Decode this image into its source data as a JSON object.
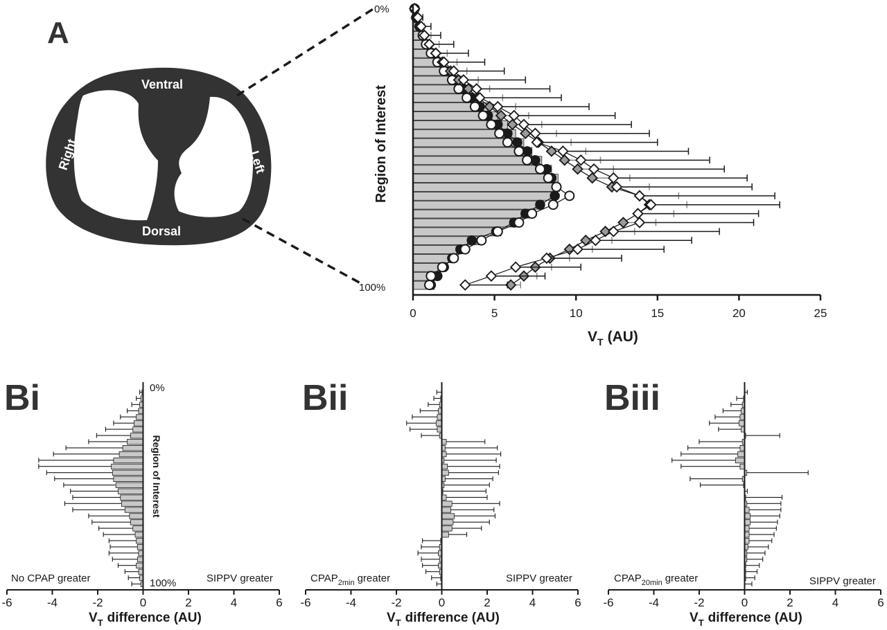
{
  "figure": {
    "panel_labels": [
      "A",
      "Bi",
      "Bii",
      "Biii"
    ],
    "lung_diagram": {
      "labels": {
        "ventral": "Ventral",
        "dorsal": "Dorsal",
        "right": "Right",
        "left": "Left"
      }
    },
    "roi_top_label": "0%",
    "roi_bottom_label": "100%"
  },
  "colors": {
    "bar_fill": "#c8c8c8",
    "ink": "#1a1a1a",
    "lung_fill": "#333333"
  },
  "chart_data": [
    {
      "id": "A",
      "type": "bar",
      "orientation": "horizontal",
      "ylabel": "Region of Interest",
      "xlabel": "V",
      "xlabel_sub": "T",
      "xlabel_unit": "(AU)",
      "xlim": [
        0,
        25
      ],
      "xticks": [
        0,
        5,
        10,
        15,
        20,
        25
      ],
      "ytop_label": "0%",
      "ybottom_label": "100%",
      "regions": 32,
      "bar_values": [
        0.1,
        0.2,
        0.5,
        0.8,
        1.1,
        1.5,
        2.0,
        2.5,
        3.1,
        3.6,
        4.2,
        4.7,
        5.2,
        5.8,
        6.3,
        6.8,
        7.3,
        7.9,
        8.5,
        8.9,
        9.0,
        8.8,
        8.0,
        7.2,
        6.4,
        5.4,
        4.2,
        3.3,
        2.6,
        2.0,
        1.6,
        1.3
      ],
      "series": [
        {
          "name": "",
          "marker": "filled-circle",
          "values": [
            0.1,
            0.2,
            0.4,
            0.6,
            0.9,
            1.2,
            1.6,
            2.0,
            2.6,
            3.1,
            3.6,
            4.1,
            4.6,
            5.2,
            5.8,
            6.4,
            7.0,
            7.5,
            8.2,
            8.5,
            8.8,
            8.7,
            7.8,
            6.9,
            6.2,
            5.1,
            3.6,
            2.9,
            2.4,
            1.9,
            1.5,
            1.1
          ],
          "errors": [
            0,
            0,
            0,
            0,
            0,
            0,
            0,
            0,
            0,
            0,
            0,
            0,
            0,
            0,
            0,
            0,
            0,
            0,
            0,
            0,
            0,
            0,
            0,
            0,
            0,
            0,
            0,
            0,
            0,
            0,
            0,
            0
          ]
        },
        {
          "name": "",
          "marker": "open-circle",
          "values": [
            0.1,
            0.2,
            0.4,
            0.6,
            0.8,
            1.1,
            1.5,
            1.9,
            2.4,
            2.8,
            3.3,
            3.8,
            4.3,
            4.8,
            5.3,
            5.8,
            6.5,
            7.0,
            7.8,
            8.3,
            8.8,
            9.6,
            8.6,
            7.3,
            6.5,
            5.2,
            4.2,
            3.2,
            2.5,
            1.8,
            1.1,
            1.0
          ],
          "errors": [
            0,
            0,
            0,
            0,
            0,
            0,
            0,
            0,
            0,
            0,
            0,
            0,
            0,
            0,
            0,
            0,
            0,
            0,
            0,
            0,
            0,
            0,
            0,
            0,
            0,
            0,
            0,
            0,
            0,
            0,
            0,
            0
          ]
        },
        {
          "name": "",
          "marker": "gray-diamond",
          "values": [
            0.1,
            0.2,
            0.4,
            0.7,
            1.0,
            1.4,
            1.8,
            2.3,
            2.8,
            3.4,
            4.0,
            4.7,
            5.4,
            6.1,
            6.9,
            7.7,
            8.5,
            9.3,
            10.1,
            11.0,
            12.2,
            13.9,
            14.5,
            13.8,
            12.9,
            11.8,
            10.6,
            9.6,
            8.4,
            7.5,
            6.8,
            6.0
          ],
          "errors": [
            0.1,
            0.2,
            0.3,
            0.4,
            0.6,
            0.7,
            0.9,
            1.0,
            1.2,
            1.3,
            1.5,
            1.6,
            1.7,
            1.8,
            1.9,
            2.0,
            2.1,
            2.2,
            2.2,
            2.3,
            2.3,
            2.4,
            2.3,
            2.2,
            2.0,
            1.8,
            1.6,
            1.4,
            1.2,
            1.0,
            0.8,
            0.6
          ]
        },
        {
          "name": "",
          "marker": "open-diamond",
          "values": [
            0.1,
            0.3,
            0.5,
            0.7,
            1.0,
            1.4,
            1.9,
            2.5,
            3.1,
            3.9,
            4.1,
            5.2,
            6.2,
            6.8,
            7.5,
            7.6,
            9.2,
            10.3,
            11.1,
            12.3,
            12.5,
            13.9,
            14.6,
            13.8,
            13.9,
            12.3,
            11.2,
            10.1,
            8.2,
            6.3,
            4.8,
            3.2
          ],
          "errors": [
            0.1,
            0.3,
            0.6,
            1.0,
            1.5,
            2.0,
            2.5,
            3.1,
            3.8,
            4.5,
            5.0,
            5.6,
            6.2,
            6.6,
            7.0,
            7.4,
            7.7,
            7.9,
            8.0,
            8.2,
            8.3,
            8.3,
            7.9,
            7.4,
            7.0,
            6.5,
            5.9,
            5.3,
            4.6,
            4.0,
            3.3,
            2.6
          ]
        }
      ]
    },
    {
      "id": "Bi",
      "type": "bar",
      "orientation": "horizontal",
      "xlabel": "V",
      "xlabel_sub": "T",
      "xlabel_unit": "difference (AU)",
      "xlim": [
        -6,
        6
      ],
      "xticks": [
        -6,
        -4,
        -2,
        0,
        2,
        4,
        6
      ],
      "ylabel": "Region of Interest",
      "ytop_label": "0%",
      "ybottom_label": "100%",
      "left_note": "No CPAP greater",
      "right_note": "SIPPV greater",
      "values": [
        -0.05,
        -0.1,
        -0.15,
        -0.2,
        -0.3,
        -0.4,
        -0.45,
        -0.55,
        -0.7,
        -0.9,
        -1.05,
        -1.3,
        -1.4,
        -1.35,
        -1.3,
        -1.2,
        -1.1,
        -1.0,
        -0.95,
        -0.8,
        -0.6,
        -0.55,
        -0.45,
        -0.35,
        -0.3,
        -0.25,
        -0.2,
        -0.25,
        -0.3,
        -0.2,
        -0.15,
        -0.1
      ],
      "errors": [
        0.1,
        0.2,
        0.35,
        0.5,
        0.7,
        0.9,
        1.2,
        1.5,
        1.7,
        2.5,
        2.9,
        3.3,
        3.2,
        2.9,
        2.6,
        2.3,
        2.1,
        2.1,
        2.5,
        2.3,
        1.8,
        1.7,
        1.5,
        1.4,
        1.2,
        1.2,
        1.3,
        1.1,
        0.8,
        0.6,
        0.5,
        0.4
      ]
    },
    {
      "id": "Bii",
      "type": "bar",
      "orientation": "horizontal",
      "xlabel": "V",
      "xlabel_sub": "T",
      "xlabel_unit": "difference (AU)",
      "xlim": [
        -6,
        6
      ],
      "xticks": [
        -6,
        -4,
        -2,
        0,
        2,
        4,
        6
      ],
      "left_note": "CPAP",
      "left_note_sub": "2min",
      "left_note_tail": "greater",
      "right_note": "SIPPV greater",
      "values": [
        -0.02,
        -0.05,
        -0.1,
        -0.15,
        -0.2,
        -0.25,
        -0.2,
        -0.1,
        0.2,
        0.15,
        0.2,
        0.1,
        0.25,
        0.3,
        0.15,
        0.1,
        0.05,
        0.2,
        0.45,
        0.4,
        0.55,
        0.5,
        0.45,
        0.3,
        -0.05,
        -0.1,
        -0.15,
        -0.1,
        -0.15,
        -0.1,
        -0.05,
        -0.02
      ],
      "errors": [
        0.2,
        0.3,
        0.5,
        0.8,
        1.1,
        1.3,
        1.2,
        0.8,
        1.7,
        2.3,
        2.4,
        2.3,
        2.3,
        2.2,
        2.1,
        2.0,
        1.9,
        1.8,
        2.1,
        1.9,
        1.8,
        1.6,
        1.3,
        0.8,
        0.8,
        0.8,
        0.9,
        0.8,
        0.7,
        0.6,
        0.4,
        0.2
      ]
    },
    {
      "id": "Biii",
      "type": "bar",
      "orientation": "horizontal",
      "xlabel": "V",
      "xlabel_sub": "T",
      "xlabel_unit": "difference (AU)",
      "xlim": [
        -6,
        6
      ],
      "xticks": [
        -6,
        -4,
        -2,
        0,
        2,
        4,
        6
      ],
      "left_note": "CPAP",
      "left_note_sub": "20min",
      "left_note_tail": "greater",
      "right_note": "SIPPV greater",
      "values": [
        0.02,
        -0.05,
        -0.1,
        -0.15,
        -0.2,
        -0.25,
        -0.15,
        0.05,
        -0.1,
        -0.2,
        -0.3,
        -0.4,
        -0.2,
        0.1,
        -0.1,
        -0.05,
        0.02,
        0.05,
        0.1,
        0.2,
        0.25,
        0.25,
        0.2,
        0.2,
        0.2,
        0.15,
        0.1,
        0.1,
        0.05,
        0.05,
        0.05,
        0.02
      ],
      "errors": [
        0.1,
        0.3,
        0.5,
        0.8,
        1.1,
        1.3,
        1.0,
        1.5,
        1.9,
        2.3,
        2.5,
        2.8,
        2.6,
        2.7,
        2.3,
        1.9,
        0.1,
        1.6,
        1.5,
        1.4,
        1.3,
        1.2,
        1.2,
        1.1,
        1.0,
        0.9,
        0.8,
        0.7,
        0.6,
        0.5,
        0.4,
        0.3
      ]
    }
  ]
}
